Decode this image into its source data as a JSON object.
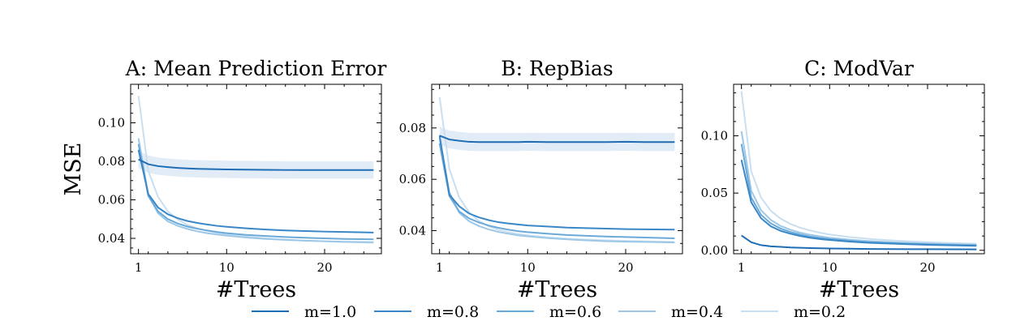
{
  "ylabel": "MSE",
  "xlabel": "#Trees",
  "legend": {
    "placement": "bottom-center",
    "entries": [
      "m=1.0",
      "m=0.8",
      "m=0.6",
      "m=0.4",
      "m=0.2"
    ]
  },
  "series_colors": {
    "m=1.0": "#1f6db4",
    "m=0.8": "#3a87c7",
    "m=0.6": "#6aa9d8",
    "m=0.4": "#9cc7e6",
    "m=0.2": "#c9dff0"
  },
  "band_color": "#d7e5f4",
  "chart_data": [
    {
      "type": "line",
      "title": "A: Mean Prediction Error",
      "xlabel": "#Trees",
      "ylabel": "MSE",
      "xlim": [
        0.2,
        25.8
      ],
      "ylim": [
        0.032,
        0.12
      ],
      "xticks": [
        1,
        10,
        20
      ],
      "yticks": [
        0.04,
        0.06,
        0.08,
        0.1
      ],
      "ytick_labels": [
        "0.04",
        "0.06",
        "0.08",
        "0.10"
      ],
      "x": [
        1,
        2,
        3,
        4,
        5,
        6,
        7,
        8,
        9,
        10,
        12,
        14,
        16,
        18,
        20,
        22,
        25
      ],
      "series": [
        {
          "name": "m=1.0",
          "band": 0.0045,
          "values": [
            0.081,
            0.0785,
            0.0775,
            0.077,
            0.0766,
            0.0763,
            0.0761,
            0.076,
            0.0759,
            0.0758,
            0.0757,
            0.0756,
            0.0755,
            0.0755,
            0.0755,
            0.0755,
            0.0755
          ]
        },
        {
          "name": "m=0.8",
          "values": [
            0.086,
            0.063,
            0.056,
            0.0525,
            0.0505,
            0.049,
            0.048,
            0.0472,
            0.0465,
            0.046,
            0.0452,
            0.0446,
            0.0441,
            0.0438,
            0.0435,
            0.0433,
            0.043
          ]
        },
        {
          "name": "m=0.6",
          "values": [
            0.089,
            0.062,
            0.054,
            0.05,
            0.0477,
            0.0461,
            0.045,
            0.0441,
            0.0433,
            0.0427,
            0.0418,
            0.0412,
            0.0407,
            0.0403,
            0.04,
            0.0397,
            0.0395
          ]
        },
        {
          "name": "m=0.4",
          "values": [
            0.092,
            0.0625,
            0.053,
            0.0488,
            0.0465,
            0.0449,
            0.0436,
            0.0427,
            0.042,
            0.0414,
            0.0404,
            0.0397,
            0.0392,
            0.0388,
            0.0385,
            0.0382,
            0.038
          ]
        },
        {
          "name": "m=0.2",
          "values": [
            0.114,
            0.075,
            0.0615,
            0.054,
            0.0498,
            0.047,
            0.0452,
            0.0439,
            0.0429,
            0.0421,
            0.0409,
            0.04,
            0.0393,
            0.0388,
            0.0384,
            0.0381,
            0.0377
          ]
        }
      ]
    },
    {
      "type": "line",
      "title": "B: RepBias",
      "xlabel": "#Trees",
      "ylabel": "",
      "xlim": [
        0.2,
        25.8
      ],
      "ylim": [
        0.031,
        0.097
      ],
      "xticks": [
        1,
        10,
        20
      ],
      "yticks": [
        0.04,
        0.06,
        0.08
      ],
      "ytick_labels": [
        "0.04",
        "0.06",
        "0.08"
      ],
      "x": [
        1,
        2,
        3,
        4,
        5,
        6,
        7,
        8,
        9,
        10,
        12,
        14,
        16,
        18,
        20,
        22,
        25
      ],
      "series": [
        {
          "name": "m=1.0",
          "band": 0.0035,
          "values": [
            0.077,
            0.0755,
            0.075,
            0.0746,
            0.0745,
            0.0745,
            0.0745,
            0.0745,
            0.0745,
            0.0746,
            0.0745,
            0.0745,
            0.0745,
            0.0745,
            0.0746,
            0.0745,
            0.0745
          ]
        },
        {
          "name": "m=0.8",
          "values": [
            0.077,
            0.054,
            0.0495,
            0.0467,
            0.0452,
            0.0441,
            0.0433,
            0.0428,
            0.0424,
            0.042,
            0.0416,
            0.0412,
            0.041,
            0.0408,
            0.0406,
            0.0405,
            0.0404
          ]
        },
        {
          "name": "m=0.6",
          "values": [
            0.074,
            0.0535,
            0.0475,
            0.0448,
            0.0432,
            0.042,
            0.0411,
            0.0404,
            0.0398,
            0.0394,
            0.0388,
            0.0383,
            0.038,
            0.0377,
            0.0375,
            0.0373,
            0.037
          ]
        },
        {
          "name": "m=0.4",
          "values": [
            0.076,
            0.055,
            0.047,
            0.0437,
            0.0418,
            0.0405,
            0.0395,
            0.0388,
            0.0382,
            0.0378,
            0.0371,
            0.0366,
            0.0362,
            0.0359,
            0.0357,
            0.0356,
            0.0354
          ]
        },
        {
          "name": "m=0.2",
          "values": [
            0.092,
            0.064,
            0.053,
            0.0472,
            0.0438,
            0.0417,
            0.0403,
            0.0394,
            0.0387,
            0.0382,
            0.0374,
            0.0369,
            0.0365,
            0.0362,
            0.036,
            0.0358,
            0.0356
          ]
        }
      ]
    },
    {
      "type": "line",
      "title": "C: ModVar",
      "xlabel": "#Trees",
      "ylabel": "",
      "xlim": [
        0.2,
        25.8
      ],
      "ylim": [
        -0.003,
        0.145
      ],
      "xticks": [
        1,
        10,
        20
      ],
      "yticks": [
        0.0,
        0.05,
        0.1
      ],
      "ytick_labels": [
        "0.00",
        "0.05",
        "0.10"
      ],
      "x": [
        1,
        2,
        3,
        4,
        5,
        6,
        7,
        8,
        9,
        10,
        12,
        14,
        16,
        18,
        20,
        22,
        25
      ],
      "series": [
        {
          "name": "m=1.0",
          "values": [
            0.013,
            0.007,
            0.0045,
            0.0035,
            0.003,
            0.0025,
            0.0022,
            0.002,
            0.0018,
            0.0016,
            0.0014,
            0.0012,
            0.0011,
            0.001,
            0.001,
            0.0009,
            0.0008
          ]
        },
        {
          "name": "m=0.8",
          "values": [
            0.079,
            0.042,
            0.028,
            0.021,
            0.017,
            0.0145,
            0.0125,
            0.011,
            0.0098,
            0.009,
            0.0076,
            0.0066,
            0.0059,
            0.0053,
            0.0048,
            0.0044,
            0.0039
          ]
        },
        {
          "name": "m=0.6",
          "values": [
            0.093,
            0.046,
            0.031,
            0.0235,
            0.019,
            0.016,
            0.0138,
            0.0121,
            0.0108,
            0.0098,
            0.0083,
            0.0072,
            0.0064,
            0.0058,
            0.0053,
            0.0049,
            0.0044
          ]
        },
        {
          "name": "m=0.4",
          "values": [
            0.104,
            0.052,
            0.035,
            0.0265,
            0.0213,
            0.0179,
            0.0154,
            0.0136,
            0.0122,
            0.011,
            0.0093,
            0.0081,
            0.0072,
            0.0065,
            0.0059,
            0.0054,
            0.0048
          ]
        },
        {
          "name": "m=0.2",
          "values": [
            0.139,
            0.069,
            0.046,
            0.0345,
            0.0276,
            0.023,
            0.0197,
            0.0173,
            0.0154,
            0.0138,
            0.0116,
            0.01,
            0.0088,
            0.0079,
            0.0071,
            0.0065,
            0.0058
          ]
        }
      ]
    }
  ]
}
